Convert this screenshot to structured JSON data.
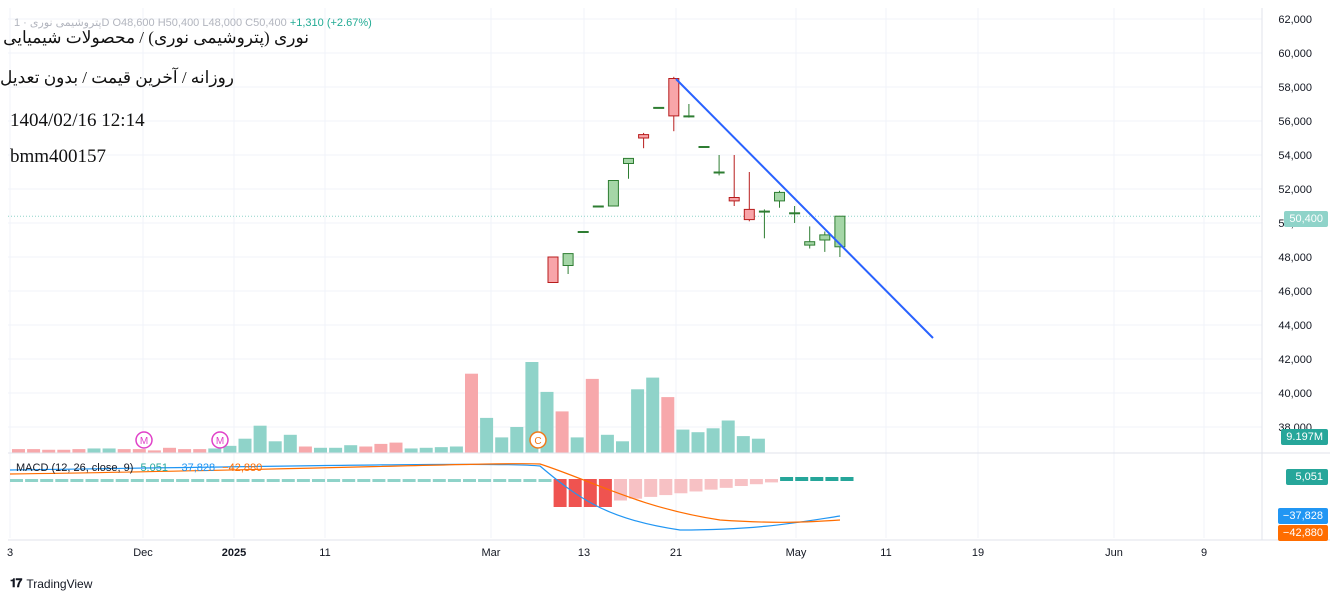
{
  "overlay": {
    "title": "نوری (پتروشیمی نوری) / محصولات شیمیایی",
    "subtitle": "روزانه / آخرین قیمت / بدون تعدیل",
    "datetime": "1404/02/16 12:14",
    "user": "bmm400157"
  },
  "ohlc": {
    "text": "پتروشیمی نوری · 1D  O48,600  H50,400  L48,000  C50,400",
    "change": "+1,310 (+2.67%)"
  },
  "badges": {
    "price": "50,400",
    "volume": "9.197M",
    "macd": "5,051",
    "signal_a": "−37,828",
    "signal_b": "−42,880"
  },
  "macd_legend": {
    "name": "MACD (12, 26, close, 9)",
    "hist": "5.051",
    "macd": "−37,828",
    "signal": "−42,880"
  },
  "footer": {
    "brand": "TradingView"
  },
  "colors": {
    "up": "#26a69a",
    "down": "#ef5350",
    "up_vol": "#8fd3c9",
    "down_vol": "#f7a8ab",
    "trend": "#2962ff",
    "macd_line": "#2196f3",
    "signal_line": "#ff6d00",
    "event_m": "#e040c8",
    "event_c": "#ef7a1a"
  },
  "chart_data": {
    "type": "candlestick",
    "y_axis_ticks": [
      "62,000",
      "60,000",
      "58,000",
      "56,000",
      "54,000",
      "52,000",
      "50,000",
      "48,000",
      "46,000",
      "44,000",
      "42,000",
      "40,000",
      "38,000"
    ],
    "ylim": [
      37000,
      62500
    ],
    "x_axis_ticks": [
      "3",
      "Dec",
      "2025",
      "11",
      "Mar",
      "13",
      "21",
      "May",
      "11",
      "19",
      "Jun",
      "9"
    ],
    "candles": [
      {
        "o": 48000,
        "h": 48000,
        "l": 46500,
        "c": 46500
      },
      {
        "o": 47500,
        "h": 48200,
        "l": 47000,
        "c": 48200
      },
      {
        "o": 49500,
        "h": 49500,
        "l": 49500,
        "c": 49500
      },
      {
        "o": 51000,
        "h": 51000,
        "l": 51000,
        "c": 51000
      },
      {
        "o": 51000,
        "h": 52500,
        "l": 51000,
        "c": 52500
      },
      {
        "o": 53500,
        "h": 53800,
        "l": 52600,
        "c": 53800
      },
      {
        "o": 55200,
        "h": 55300,
        "l": 54400,
        "c": 55000
      },
      {
        "o": 56800,
        "h": 56800,
        "l": 56800,
        "c": 56800
      },
      {
        "o": 58500,
        "h": 58600,
        "l": 55400,
        "c": 56300
      },
      {
        "o": 56300,
        "h": 57000,
        "l": 56200,
        "c": 56300
      },
      {
        "o": 54500,
        "h": 54500,
        "l": 54500,
        "c": 54500
      },
      {
        "o": 53000,
        "h": 54000,
        "l": 52800,
        "c": 53000
      },
      {
        "o": 51500,
        "h": 54000,
        "l": 51000,
        "c": 51300
      },
      {
        "o": 50800,
        "h": 53000,
        "l": 50100,
        "c": 50200
      },
      {
        "o": 50700,
        "h": 50800,
        "l": 49100,
        "c": 50700
      },
      {
        "o": 51300,
        "h": 51900,
        "l": 50900,
        "c": 51800
      },
      {
        "o": 50600,
        "h": 51000,
        "l": 50000,
        "c": 50600
      },
      {
        "o": 48700,
        "h": 49800,
        "l": 48500,
        "c": 48900
      },
      {
        "o": 49000,
        "h": 49500,
        "l": 48300,
        "c": 49300
      },
      {
        "o": 48600,
        "h": 50400,
        "l": 48000,
        "c": 50400
      }
    ],
    "volume_bars": [
      {
        "v": 0.3,
        "up": false
      },
      {
        "v": 0.3,
        "up": false
      },
      {
        "v": 0.25,
        "up": false
      },
      {
        "v": 0.25,
        "up": false
      },
      {
        "v": 0.3,
        "up": false
      },
      {
        "v": 0.35,
        "up": true
      },
      {
        "v": 0.35,
        "up": true
      },
      {
        "v": 0.3,
        "up": false
      },
      {
        "v": 0.3,
        "up": false
      },
      {
        "v": 0.2,
        "up": false
      },
      {
        "v": 0.4,
        "up": false
      },
      {
        "v": 0.3,
        "up": false
      },
      {
        "v": 0.3,
        "up": false
      },
      {
        "v": 0.35,
        "up": true
      },
      {
        "v": 0.55,
        "up": true
      },
      {
        "v": 1.1,
        "up": true
      },
      {
        "v": 2.1,
        "up": true
      },
      {
        "v": 0.9,
        "up": true
      },
      {
        "v": 1.4,
        "up": true
      },
      {
        "v": 0.5,
        "up": false
      },
      {
        "v": 0.4,
        "up": true
      },
      {
        "v": 0.4,
        "up": true
      },
      {
        "v": 0.6,
        "up": true
      },
      {
        "v": 0.5,
        "up": false
      },
      {
        "v": 0.7,
        "up": false
      },
      {
        "v": 0.8,
        "up": false
      },
      {
        "v": 0.35,
        "up": true
      },
      {
        "v": 0.4,
        "up": true
      },
      {
        "v": 0.45,
        "up": true
      },
      {
        "v": 0.5,
        "up": true
      },
      {
        "v": 6.1,
        "up": false
      },
      {
        "v": 2.7,
        "up": true
      },
      {
        "v": 1.2,
        "up": true
      },
      {
        "v": 2.0,
        "up": true
      },
      {
        "v": 7.0,
        "up": true
      },
      {
        "v": 4.7,
        "up": true
      },
      {
        "v": 3.2,
        "up": false
      },
      {
        "v": 1.2,
        "up": true
      },
      {
        "v": 5.7,
        "up": false
      },
      {
        "v": 1.4,
        "up": true
      },
      {
        "v": 0.9,
        "up": true
      },
      {
        "v": 4.9,
        "up": true
      },
      {
        "v": 5.8,
        "up": true
      },
      {
        "v": 4.3,
        "up": false
      },
      {
        "v": 1.8,
        "up": true
      },
      {
        "v": 1.6,
        "up": true
      },
      {
        "v": 1.9,
        "up": true
      },
      {
        "v": 2.5,
        "up": true
      },
      {
        "v": 1.3,
        "up": true
      },
      {
        "v": 1.1,
        "up": true
      }
    ],
    "event_markers": [
      "M",
      "M",
      "C"
    ],
    "last_volume": "9.197M",
    "macd": {
      "fast": 12,
      "slow": 26,
      "signal_period": 9,
      "hist": 5051,
      "macd": -37828,
      "signal": -42880
    }
  }
}
